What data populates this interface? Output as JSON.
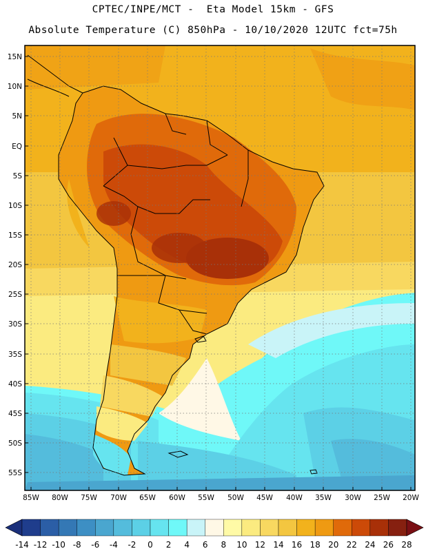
{
  "header": {
    "line1": "CPTEC/INPE/MCT -  Eta Model 15km - GFS",
    "line2": "Absolute Temperature (C) 850hPa - 10/10/2020 12UTC fct=75h"
  },
  "map": {
    "lat_labels": [
      "15N",
      "10N",
      "5N",
      "EQ",
      "5S",
      "10S",
      "15S",
      "20S",
      "25S",
      "30S",
      "35S",
      "40S",
      "45S",
      "50S",
      "55S"
    ],
    "lon_labels": [
      "85W",
      "80W",
      "75W",
      "70W",
      "65W",
      "60W",
      "55W",
      "50W",
      "45W",
      "40W",
      "35W",
      "30W",
      "25W",
      "20W"
    ]
  },
  "colorbar": {
    "labels": [
      "-14",
      "-12",
      "-10",
      "-8",
      "-6",
      "-4",
      "-2",
      "0",
      "2",
      "4",
      "6",
      "8",
      "10",
      "12",
      "14",
      "16",
      "18",
      "20",
      "22",
      "24",
      "26",
      "28"
    ],
    "colors": [
      "#1f3d8c",
      "#2b5ea6",
      "#3478b5",
      "#3d8fc4",
      "#4aa6cf",
      "#54bcdc",
      "#5cd0e6",
      "#66e4ef",
      "#6ff8f8",
      "#c9f4f8",
      "#fff8e6",
      "#fffaa6",
      "#fbeb80",
      "#f8d860",
      "#f3c640",
      "#f2b21c",
      "#ef9a12",
      "#e06a0a",
      "#cc4a08",
      "#a83008",
      "#862010"
    ],
    "under_color": "#1a2f7a",
    "over_color": "#7a0f14"
  }
}
